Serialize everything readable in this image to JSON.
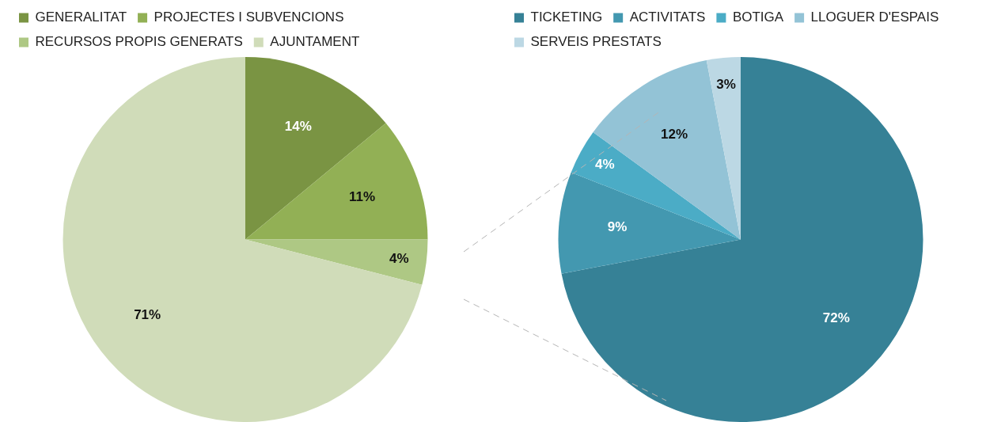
{
  "chart_data": [
    {
      "type": "pie",
      "categories": [
        "GENERALITAT",
        "PROJECTES I SUBVENCIONS",
        "RECURSOS PROPIS GENERATS",
        "AJUNTAMENT"
      ],
      "values": [
        14,
        11,
        4,
        71
      ],
      "colors": [
        "#7a9443",
        "#92b055",
        "#aec884",
        "#d0dcb9"
      ],
      "value_labels": [
        "14%",
        "11%",
        "4%",
        "71%"
      ],
      "legend": "top"
    },
    {
      "type": "pie",
      "categories": [
        "TICKETING",
        "ACTIVITATS",
        "BOTIGA",
        "LLOGUER D'ESPAIS",
        "SERVEIS PRESTATS"
      ],
      "values": [
        72,
        9,
        4,
        12,
        3
      ],
      "colors": [
        "#368196",
        "#4398b0",
        "#4bacc6",
        "#93c3d6",
        "#bcd8e4"
      ],
      "value_labels": [
        "72%",
        "9%",
        "4%",
        "12%",
        "3%"
      ],
      "legend": "top"
    }
  ]
}
